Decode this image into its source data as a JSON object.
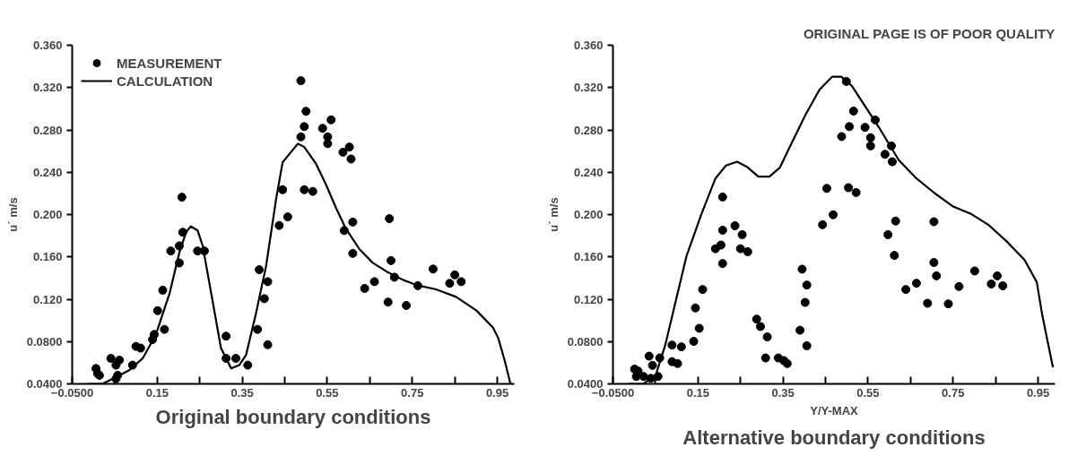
{
  "chart_data": [
    {
      "type": "scatter",
      "title": "Original boundary conditions",
      "ylabel": "u´ m/s",
      "xlim": [
        -0.05,
        0.99
      ],
      "ylim": [
        0.04,
        0.36
      ],
      "xticks": [
        {
          "value": -0.05,
          "label": "−0.0500"
        },
        {
          "value": 0.05,
          "label": null
        },
        0.15,
        {
          "value": 0.25,
          "label": null
        },
        0.35,
        {
          "value": 0.45,
          "label": null
        },
        0.55,
        {
          "value": 0.65,
          "label": null
        },
        0.75,
        {
          "value": 0.85,
          "label": null
        },
        0.95
      ],
      "yticks": [
        {
          "value": 0.04,
          "label": "0.0400"
        },
        {
          "value": 0.08,
          "label": "0.0800"
        },
        {
          "value": 0.12,
          "label": "0.120"
        },
        {
          "value": 0.16,
          "label": "0.160"
        },
        {
          "value": 0.2,
          "label": "0.200"
        },
        {
          "value": 0.24,
          "label": "0.240"
        },
        {
          "value": 0.28,
          "label": "0.280"
        },
        {
          "value": 0.32,
          "label": "0.320"
        },
        {
          "value": 0.36,
          "label": "0.360"
        }
      ],
      "grid": false,
      "legend": "top left",
      "series": [
        {
          "name": "MEASUREMENT",
          "marker": "circle",
          "color": "#000000",
          "x": [
            0.006,
            0.01,
            0.014,
            0.041,
            0.053,
            0.057,
            0.061,
            0.053,
            0.092,
            0.1,
            0.111,
            0.139,
            0.143,
            0.151,
            0.163,
            0.167,
            0.182,
            0.202,
            0.202,
            0.21,
            0.208,
            0.245,
            0.261,
            0.312,
            0.312,
            0.335,
            0.363,
            0.386,
            0.39,
            0.402,
            0.41,
            0.41,
            0.437,
            0.445,
            0.457,
            0.488,
            0.488,
            0.496,
            0.5,
            0.496,
            0.516,
            0.539,
            0.551,
            0.551,
            0.559,
            0.587,
            0.602,
            0.606,
            0.59,
            0.61,
            0.61,
            0.638,
            0.661,
            0.693,
            0.696,
            0.7,
            0.708,
            0.736,
            0.763,
            0.799,
            0.838,
            0.85,
            0.865
          ],
          "values": [
            0.0545,
            0.0497,
            0.0481,
            0.0641,
            0.0577,
            0.0481,
            0.0625,
            0.0448,
            0.0577,
            0.0754,
            0.0738,
            0.0819,
            0.0867,
            0.1092,
            0.1285,
            0.0915,
            0.1656,
            0.1543,
            0.1704,
            0.1833,
            0.2164,
            0.1656,
            0.1656,
            0.0851,
            0.0641,
            0.0641,
            0.0577,
            0.0915,
            0.1479,
            0.1205,
            0.1366,
            0.077,
            0.1897,
            0.2235,
            0.1978,
            0.2734,
            0.3265,
            0.2831,
            0.2976,
            0.2235,
            0.2219,
            0.2815,
            0.2734,
            0.267,
            0.2895,
            0.2589,
            0.2638,
            0.2525,
            0.1849,
            0.1929,
            0.1633,
            0.1302,
            0.1366,
            0.1173,
            0.1961,
            0.1565,
            0.1408,
            0.1141,
            0.1328,
            0.1485,
            0.135,
            0.143,
            0.1366
          ]
        },
        {
          "name": "CALCULATION",
          "type": "line",
          "color": "#000000",
          "line_style": "solid",
          "x": [
            -0.014,
            0.021,
            0.053,
            0.084,
            0.116,
            0.147,
            0.179,
            0.202,
            0.218,
            0.229,
            0.245,
            0.257,
            0.28,
            0.3,
            0.324,
            0.343,
            0.359,
            0.382,
            0.406,
            0.43,
            0.445,
            0.461,
            0.481,
            0.496,
            0.524,
            0.547,
            0.571,
            0.594,
            0.626,
            0.657,
            0.689,
            0.728,
            0.759,
            0.806,
            0.853,
            0.901,
            0.94,
            0.952,
            0.967,
            0.981
          ],
          "values": [
            0.04,
            0.04,
            0.0464,
            0.0529,
            0.0642,
            0.0868,
            0.1254,
            0.1641,
            0.1834,
            0.1889,
            0.185,
            0.1705,
            0.119,
            0.0738,
            0.0546,
            0.0577,
            0.0674,
            0.106,
            0.1511,
            0.2155,
            0.2493,
            0.2573,
            0.267,
            0.2638,
            0.2477,
            0.2284,
            0.2059,
            0.1865,
            0.1672,
            0.1544,
            0.1463,
            0.1383,
            0.1335,
            0.1293,
            0.1222,
            0.1093,
            0.0932,
            0.0835,
            0.0627,
            0.04
          ]
        }
      ]
    },
    {
      "type": "scatter",
      "title": "Alternative boundary conditions",
      "xlabel": "Y/Y-MAX",
      "ylabel": "u´ m/s",
      "xlim": [
        -0.05,
        0.99
      ],
      "ylim": [
        0.04,
        0.36
      ],
      "xticks": [
        {
          "value": -0.05,
          "label": "−0.0500"
        },
        {
          "value": 0.05,
          "label": null
        },
        0.15,
        {
          "value": 0.25,
          "label": null
        },
        0.35,
        {
          "value": 0.45,
          "label": null
        },
        0.55,
        {
          "value": 0.65,
          "label": null
        },
        0.75,
        {
          "value": 0.85,
          "label": null
        },
        0.95
      ],
      "yticks": [
        {
          "value": 0.04,
          "label": "0.0400"
        },
        {
          "value": 0.08,
          "label": "0.0800"
        },
        {
          "value": 0.12,
          "label": "0.120"
        },
        {
          "value": 0.16,
          "label": "0.160"
        },
        {
          "value": 0.2,
          "label": "0.200"
        },
        {
          "value": 0.24,
          "label": "0.240"
        },
        {
          "value": 0.28,
          "label": "0.280"
        },
        {
          "value": 0.32,
          "label": "0.320"
        },
        {
          "value": 0.36,
          "label": "0.360"
        }
      ],
      "grid": false,
      "legend": false,
      "annotations": [
        "ORIGINAL PAGE IS OF POOR QUALITY"
      ],
      "series": [
        {
          "marker": "circle",
          "color": "#000000",
          "x": [
            0.001,
            0.009,
            0.005,
            0.022,
            0.035,
            0.039,
            0.043,
            0.056,
            0.06,
            0.089,
            0.089,
            0.102,
            0.111,
            0.14,
            0.144,
            0.153,
            0.161,
            0.191,
            0.204,
            0.208,
            0.208,
            0.208,
            0.237,
            0.254,
            0.25,
            0.267,
            0.288,
            0.297,
            0.313,
            0.309,
            0.339,
            0.352,
            0.36,
            0.39,
            0.395,
            0.406,
            0.402,
            0.406,
            0.443,
            0.453,
            0.468,
            0.488,
            0.499,
            0.506,
            0.516,
            0.504,
            0.522,
            0.543,
            0.556,
            0.556,
            0.567,
            0.59,
            0.605,
            0.607,
            0.597,
            0.615,
            0.612,
            0.639,
            0.664,
            0.69,
            0.705,
            0.705,
            0.711,
            0.739,
            0.764,
            0.801,
            0.84,
            0.854,
            0.867
          ],
          "values": [
            0.054,
            0.0522,
            0.047,
            0.047,
            0.0662,
            0.0452,
            0.0575,
            0.047,
            0.0645,
            0.0767,
            0.061,
            0.0592,
            0.075,
            0.0802,
            0.1117,
            0.0925,
            0.1292,
            0.1677,
            0.1712,
            0.1852,
            0.2166,
            0.1537,
            0.1894,
            0.181,
            0.1677,
            0.1649,
            0.1012,
            0.0942,
            0.0844,
            0.0645,
            0.0645,
            0.062,
            0.0592,
            0.0907,
            0.1484,
            0.1334,
            0.117,
            0.076,
            0.1904,
            0.2247,
            0.1998,
            0.2737,
            0.3258,
            0.2831,
            0.2978,
            0.2254,
            0.2208,
            0.2824,
            0.2726,
            0.2649,
            0.2894,
            0.2569,
            0.2649,
            0.2499,
            0.181,
            0.1939,
            0.1614,
            0.1292,
            0.1351,
            0.1162,
            0.1932,
            0.1547,
            0.1421,
            0.1156,
            0.132,
            0.1467,
            0.1344,
            0.1421,
            0.1327
          ]
        },
        {
          "type": "line",
          "color": "#000000",
          "line_style": "solid",
          "x": [
            -0.016,
            0.022,
            0.051,
            0.073,
            0.098,
            0.123,
            0.157,
            0.191,
            0.216,
            0.242,
            0.267,
            0.292,
            0.318,
            0.343,
            0.368,
            0.402,
            0.436,
            0.466,
            0.487,
            0.512,
            0.546,
            0.58,
            0.622,
            0.664,
            0.707,
            0.749,
            0.791,
            0.833,
            0.876,
            0.918,
            0.947,
            0.96,
            0.985
          ],
          "values": [
            0.04,
            0.04,
            0.0487,
            0.0767,
            0.1187,
            0.1607,
            0.1992,
            0.2341,
            0.2464,
            0.2499,
            0.2446,
            0.2359,
            0.2359,
            0.2446,
            0.2656,
            0.2936,
            0.3181,
            0.3303,
            0.3303,
            0.3216,
            0.3006,
            0.2796,
            0.2516,
            0.2341,
            0.2201,
            0.2079,
            0.2009,
            0.1904,
            0.1747,
            0.1572,
            0.1362,
            0.1047,
            0.0557
          ]
        }
      ]
    }
  ]
}
